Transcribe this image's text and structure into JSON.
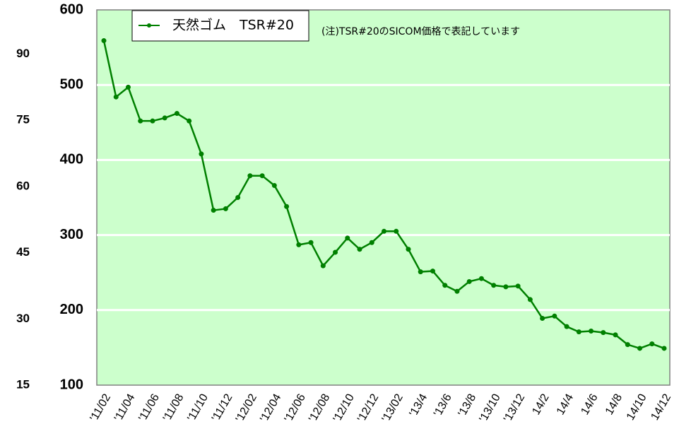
{
  "chart_data": {
    "type": "line",
    "annotation": "(注)TSR#20のSICOM価格で表記しています",
    "categories": [
      "'11/02",
      null,
      "'11/04",
      null,
      "'11/06",
      null,
      "'11/08",
      null,
      "'11/10",
      null,
      "'11/12",
      null,
      "'12/02",
      null,
      "'12/04",
      null,
      "'12/06",
      null,
      "'12/08",
      null,
      "'12/10",
      null,
      "'12/12",
      null,
      "'13/02",
      null,
      "'13/4",
      null,
      "'13/6",
      null,
      "'13/8",
      null,
      "'13/10",
      null,
      "'13/12",
      null,
      "14/2",
      null,
      "14/4",
      null,
      "14/6",
      null,
      "14/8",
      null,
      "14/10",
      null,
      "14/12"
    ],
    "series": [
      {
        "name": "天然ゴム　TSR#20",
        "color": "#008000",
        "values": [
          559,
          484,
          497,
          452,
          452,
          456,
          462,
          452,
          408,
          333,
          335,
          350,
          379,
          379,
          366,
          338,
          287,
          290,
          259,
          277,
          296,
          281,
          290,
          305,
          305,
          281,
          251,
          252,
          233,
          225,
          238,
          242,
          233,
          231,
          232,
          214,
          189,
          192,
          178,
          171,
          172,
          170,
          167,
          154,
          149,
          155,
          149
        ]
      }
    ],
    "ylim": [
      100,
      600
    ],
    "yticks": [
      100,
      200,
      300,
      400,
      500,
      600
    ],
    "y2lim": [
      15,
      100
    ],
    "y2ticks": [
      15,
      30,
      45,
      60,
      75,
      90
    ],
    "grid": true,
    "background": "#ccffcc"
  }
}
